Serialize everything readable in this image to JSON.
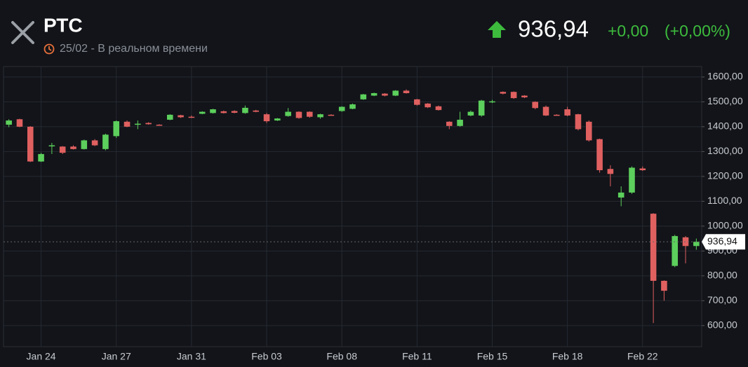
{
  "header": {
    "title": "РТС",
    "subtitle": "25/02 - В реальном времени",
    "change": "+0,00",
    "change_percent": "(+0,00%)"
  },
  "chart_data": {
    "type": "candlestick",
    "categories": [
      null,
      null,
      null,
      "Jan 24",
      null,
      null,
      null,
      null,
      null,
      null,
      "Jan 27",
      null,
      null,
      null,
      null,
      null,
      null,
      "Jan 31",
      null,
      null,
      null,
      null,
      null,
      null,
      "Feb 03",
      null,
      null,
      null,
      null,
      null,
      null,
      "Feb 08",
      null,
      null,
      null,
      null,
      null,
      null,
      "Feb 11",
      null,
      null,
      null,
      null,
      null,
      null,
      "Feb 15",
      null,
      null,
      null,
      null,
      null,
      null,
      "Feb 18",
      null,
      null,
      null,
      null,
      null,
      null,
      "Feb 22",
      null,
      null,
      null,
      null,
      null
    ],
    "open": [
      1408,
      1430,
      1400,
      1260,
      1322,
      1320,
      1320,
      1310,
      1345,
      1310,
      1362,
      1420,
      1410,
      1415,
      1408,
      1428,
      1446,
      1440,
      1452,
      1455,
      1462,
      1463,
      1455,
      1465,
      1450,
      1425,
      1443,
      1460,
      1460,
      1438,
      1448,
      1463,
      1472,
      1510,
      1525,
      1533,
      1525,
      1545,
      1510,
      1493,
      1482,
      1420,
      1403,
      1445,
      1445,
      1498,
      1540,
      1540,
      1525,
      1500,
      1480,
      1448,
      1470,
      1450,
      1420,
      1350,
      1230,
      1115,
      1135,
      1232,
      1050,
      780,
      840,
      955,
      920
    ],
    "high": [
      1430,
      1432,
      1402,
      1295,
      1335,
      1322,
      1325,
      1348,
      1350,
      1372,
      1425,
      1425,
      1425,
      1418,
      1410,
      1450,
      1448,
      1445,
      1462,
      1472,
      1465,
      1466,
      1485,
      1468,
      1455,
      1435,
      1475,
      1462,
      1462,
      1452,
      1450,
      1482,
      1493,
      1532,
      1537,
      1535,
      1547,
      1550,
      1512,
      1495,
      1485,
      1422,
      1460,
      1465,
      1508,
      1508,
      1542,
      1542,
      1527,
      1502,
      1485,
      1450,
      1480,
      1452,
      1425,
      1352,
      1245,
      1160,
      1240,
      1240,
      1052,
      782,
      965,
      960,
      950
    ],
    "low": [
      1398,
      1398,
      1258,
      1258,
      1290,
      1290,
      1308,
      1308,
      1322,
      1305,
      1355,
      1398,
      1390,
      1408,
      1404,
      1426,
      1435,
      1435,
      1450,
      1453,
      1453,
      1454,
      1452,
      1458,
      1415,
      1423,
      1440,
      1432,
      1436,
      1432,
      1445,
      1460,
      1470,
      1508,
      1523,
      1522,
      1523,
      1533,
      1485,
      1475,
      1465,
      1390,
      1400,
      1442,
      1440,
      1495,
      1530,
      1512,
      1515,
      1470,
      1443,
      1445,
      1442,
      1385,
      1340,
      1215,
      1160,
      1080,
      1130,
      1222,
      610,
      700,
      835,
      850,
      905
    ],
    "close": [
      1425,
      1400,
      1260,
      1290,
      1325,
      1295,
      1310,
      1345,
      1325,
      1368,
      1422,
      1400,
      1412,
      1410,
      1406,
      1448,
      1438,
      1438,
      1460,
      1470,
      1455,
      1456,
      1476,
      1460,
      1422,
      1433,
      1460,
      1435,
      1440,
      1450,
      1447,
      1480,
      1490,
      1530,
      1535,
      1525,
      1545,
      1535,
      1488,
      1478,
      1467,
      1403,
      1428,
      1460,
      1505,
      1502,
      1533,
      1515,
      1518,
      1475,
      1445,
      1447,
      1445,
      1390,
      1345,
      1225,
      1210,
      1135,
      1235,
      1225,
      780,
      740,
      960,
      920,
      936.94
    ],
    "up_color": "#5ccf5c",
    "down_color": "#e06060",
    "ylim": [
      515,
      1642
    ],
    "yticks": [
      {
        "value": 600,
        "label": "600,00"
      },
      {
        "value": 700,
        "label": "700,00"
      },
      {
        "value": 800,
        "label": "800,00"
      },
      {
        "value": 900,
        "label": "900,00"
      },
      {
        "value": 1000,
        "label": "1000,00"
      },
      {
        "value": 1100,
        "label": "1100,00"
      },
      {
        "value": 1200,
        "label": "1200,00"
      },
      {
        "value": 1300,
        "label": "1300,00"
      },
      {
        "value": 1400,
        "label": "1400,00"
      },
      {
        "value": 1500,
        "label": "1500,00"
      },
      {
        "value": 1600,
        "label": "1600,00"
      }
    ],
    "last_price": {
      "value": 936.94,
      "label": "936,94"
    },
    "grid": true
  }
}
